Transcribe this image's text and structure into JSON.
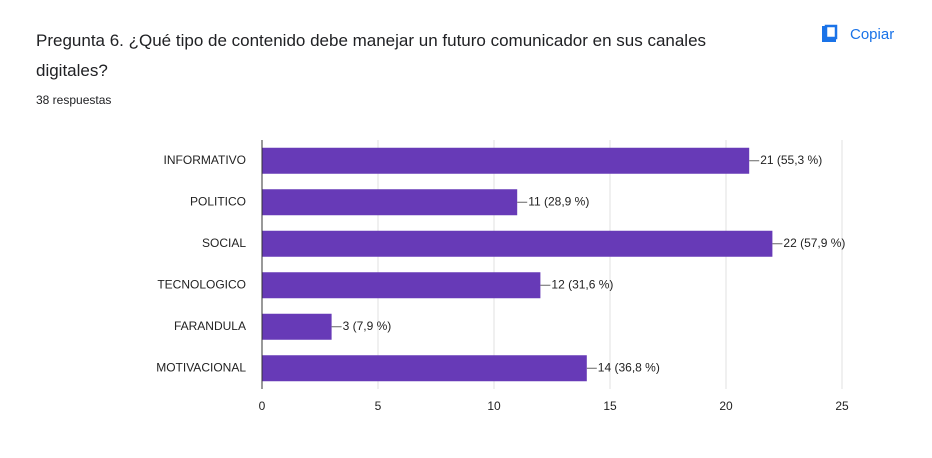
{
  "copy_button": "Copiar",
  "chart_data": {
    "type": "bar",
    "orientation": "horizontal",
    "title": "Pregunta 6. ¿Qué tipo de contenido debe manejar un futuro comunicador en sus canales digitales?",
    "subtitle": "38 respuestas",
    "categories": [
      "INFORMATIVO",
      "POLITICO",
      "SOCIAL",
      "TECNOLOGICO",
      "FARANDULA",
      "MOTIVACIONAL"
    ],
    "values": [
      21,
      11,
      22,
      12,
      3,
      14
    ],
    "value_labels": [
      "21 (55,3 %)",
      "11 (28,9 %)",
      "22 (57,9 %)",
      "12 (31,6 %)",
      "3 (7,9 %)",
      "14 (36,8 %)"
    ],
    "color": "#673ab7",
    "xlim": [
      0,
      25
    ],
    "xticks": [
      0,
      5,
      10,
      15,
      20,
      25
    ],
    "grid": true
  }
}
